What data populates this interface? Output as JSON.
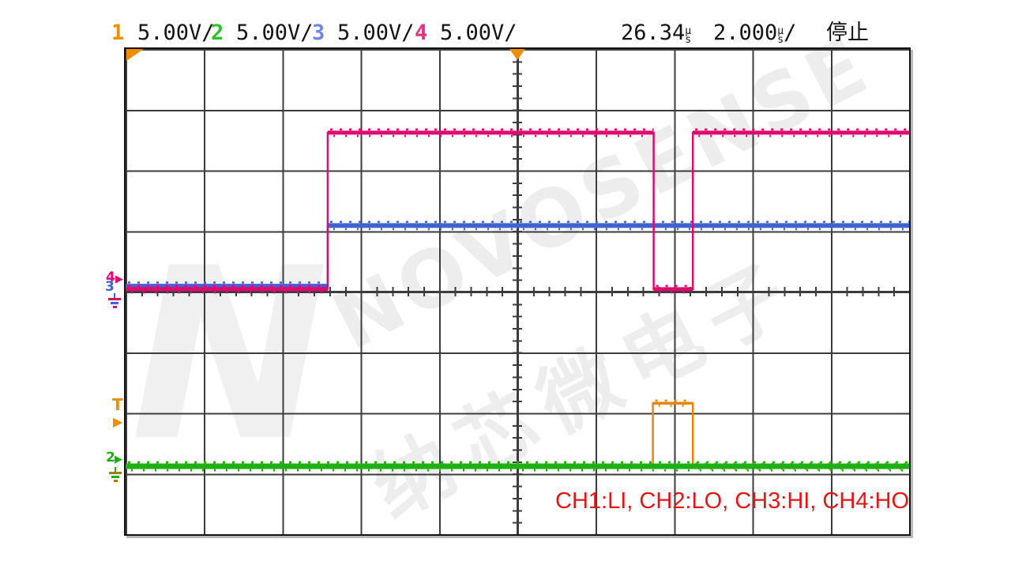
{
  "header": {
    "channels": [
      {
        "num": "1",
        "scale": "5.00V/",
        "color": "#F08C00"
      },
      {
        "num": "2",
        "scale": "5.00V/",
        "color": "#2BC22B"
      },
      {
        "num": "3",
        "scale": "5.00V/",
        "color": "#6E86E8"
      },
      {
        "num": "4",
        "scale": "5.00V/",
        "color": "#E8327E"
      }
    ],
    "delay_value": "26.34",
    "delay_unit_top": "µ",
    "delay_unit_bottom": "s",
    "timebase_value": "2.000",
    "timebase_unit_top": "µ",
    "timebase_unit_bottom": "s",
    "timebase_suffix": "/",
    "run_state": "停止"
  },
  "plot": {
    "annotation": "CH1:LI, CH2:LO, CH3:HI, CH4:HO",
    "annotation_color": "#E31515"
  },
  "markers": {
    "trigger_label": "T",
    "trigger_arrow": "▶",
    "ch4_label": "4",
    "ch3_label": "3",
    "ch2_label": "2",
    "ch4_arrow": "▶",
    "ch2_arrow": "▶"
  },
  "watermark": {
    "logo": "N",
    "line1": "NOVOSENSE",
    "line2": "纳芯微电子"
  },
  "colors": {
    "ch1_orange": "#E8860B",
    "ch2_green": "#1CB014",
    "ch3_blue": "#4063CF",
    "ch4_magenta": "#E00A6E",
    "grid": "#3C3C3C",
    "annotation_red": "#E31515"
  },
  "chart_data": {
    "type": "line",
    "title": "",
    "x_axis": {
      "units_per_div": "2.000µs",
      "divisions": 10,
      "delay_readout": "26.34µs"
    },
    "y_axis": {
      "units_per_div": "5.00V",
      "divisions": 8
    },
    "acquisition_state": "停止",
    "grid": {
      "cols": 10,
      "rows": 8
    },
    "waveforms": [
      {
        "name": "CH1 (LI)",
        "color": "#E8860B",
        "band": 3.5,
        "points_div": [
          [
            0,
            6.88
          ],
          [
            6.73,
            6.88
          ],
          [
            6.73,
            5.84
          ],
          [
            7.24,
            5.84
          ],
          [
            7.24,
            6.88
          ],
          [
            10,
            6.88
          ]
        ]
      },
      {
        "name": "CH3 (HI)",
        "color": "#4063CF",
        "band": 6,
        "points_div": [
          [
            0,
            3.91
          ],
          [
            2.58,
            3.91
          ],
          [
            2.58,
            2.91
          ],
          [
            10,
            2.91
          ]
        ]
      },
      {
        "name": "CH4 (HO)",
        "color": "#E00A6E",
        "band": 5,
        "points_div": [
          [
            0,
            3.96
          ],
          [
            2.58,
            3.96
          ],
          [
            2.58,
            1.38
          ],
          [
            6.74,
            1.38
          ],
          [
            6.74,
            3.96
          ],
          [
            7.24,
            3.96
          ],
          [
            7.24,
            1.38
          ],
          [
            10,
            1.38
          ]
        ]
      },
      {
        "name": "CH2 (LO)",
        "color": "#1CB014",
        "band": 7,
        "points_div": [
          [
            0,
            6.88
          ],
          [
            10,
            6.88
          ]
        ]
      }
    ]
  }
}
